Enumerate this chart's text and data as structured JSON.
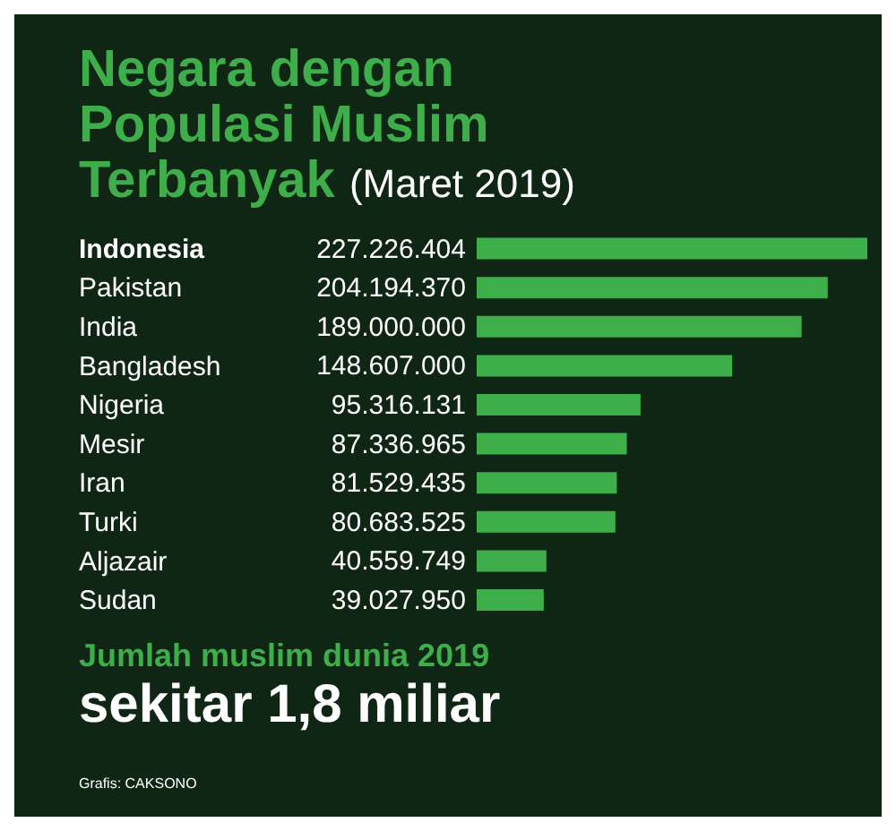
{
  "chart_data": {
    "type": "bar",
    "orientation": "horizontal",
    "title": "Negara dengan Populasi Muslim Terbanyak",
    "subtitle": "(Maret 2019)",
    "categories": [
      "Indonesia",
      "Pakistan",
      "India",
      "Bangladesh",
      "Nigeria",
      "Mesir",
      "Iran",
      "Turki",
      "Aljazair",
      "Sudan"
    ],
    "values": [
      227226404,
      204194370,
      189000000,
      148607000,
      95316131,
      87336965,
      81529435,
      80683525,
      40559749,
      39027950
    ],
    "value_labels": [
      "227.226.404",
      "204.194.370",
      "189.000.000",
      "148.607.000",
      "95.316.131",
      "87.336.965",
      "81.529.435",
      "80.683.525",
      "40.559.749",
      "39.027.950"
    ],
    "color": "#3dae4a",
    "annotations": [
      "Jumlah muslim dunia 2019",
      "sekitar 1,8 miliar",
      "Grafis: CAKSONO"
    ]
  }
}
